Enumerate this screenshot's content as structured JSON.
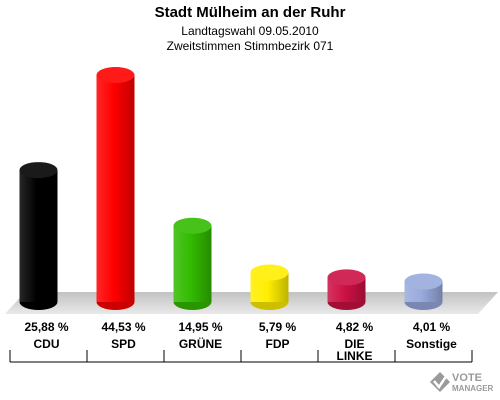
{
  "chart_data": {
    "type": "bar",
    "title": "Stadt Mülheim an der Ruhr",
    "subtitle_line1": "Landtagswahl 09.05.2010",
    "subtitle_line2": "Zweitstimmen Stimmbezirk 071",
    "categories": [
      "CDU",
      "SPD",
      "GRÜNE",
      "FDP",
      "DIE LINKE",
      "Sonstige"
    ],
    "category_lines": [
      [
        "CDU"
      ],
      [
        "SPD"
      ],
      [
        "GRÜNE"
      ],
      [
        "FDP"
      ],
      [
        "DIE",
        "LINKE"
      ],
      [
        "Sonstige"
      ]
    ],
    "values": [
      25.88,
      44.53,
      14.95,
      5.79,
      4.82,
      4.01
    ],
    "value_labels": [
      "25,88 %",
      "44,53 %",
      "14,95 %",
      "5,79 %",
      "4,82 %",
      "4,01 %"
    ],
    "colors": [
      "#000000",
      "#ff0000",
      "#33bb00",
      "#ffee00",
      "#cc1144",
      "#99aadd"
    ],
    "ylim": [
      0,
      44.53
    ],
    "grid": false,
    "legend": "none"
  },
  "logo": {
    "text_line1": "VOTE",
    "text_line2": "MANAGER"
  }
}
